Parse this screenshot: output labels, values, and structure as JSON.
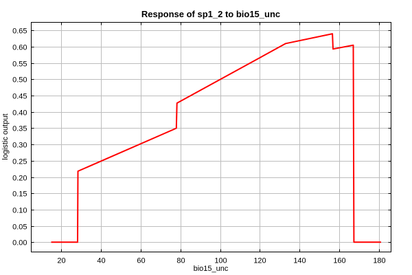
{
  "chart_data": {
    "type": "line",
    "title": "Response of sp1_2 to bio15_unc",
    "xlabel": "bio15_unc",
    "ylabel": "logistic output",
    "xlim": [
      5,
      186
    ],
    "ylim": [
      -0.03,
      0.675
    ],
    "xticks": [
      20,
      40,
      60,
      80,
      100,
      120,
      140,
      160,
      180
    ],
    "yticks": [
      0.0,
      0.05,
      0.1,
      0.15,
      0.2,
      0.25,
      0.3,
      0.35,
      0.4,
      0.45,
      0.5,
      0.55,
      0.6,
      0.65
    ],
    "grid": true,
    "series": [
      {
        "color": "#ff0000",
        "x": [
          15,
          28.3,
          28.5,
          78,
          78.3,
          133,
          156.5,
          156.8,
          167,
          167.3,
          181
        ],
        "y": [
          0.0,
          0.0,
          0.218,
          0.35,
          0.427,
          0.61,
          0.64,
          0.593,
          0.605,
          0.0,
          0.0
        ]
      }
    ]
  }
}
